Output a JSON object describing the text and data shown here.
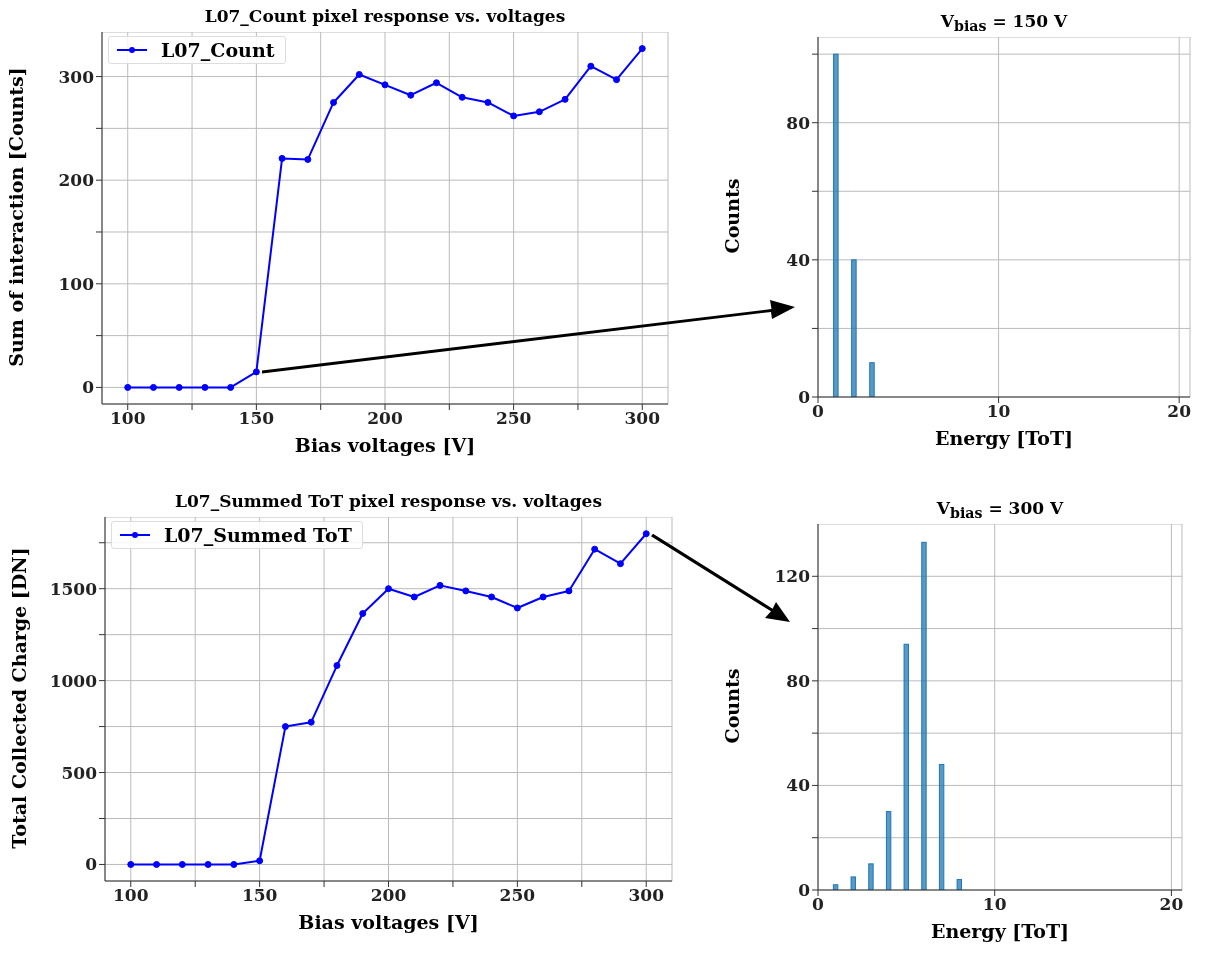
{
  "chart_data": [
    {
      "type": "line",
      "title": "L07_Count pixel response vs. voltages",
      "xlabel": "Bias voltages [V]",
      "ylabel": "Sum of interaction [Counts]",
      "x": [
        100,
        110,
        120,
        130,
        140,
        150,
        160,
        170,
        180,
        190,
        200,
        210,
        220,
        230,
        240,
        250,
        260,
        270,
        280,
        290,
        300
      ],
      "series": [
        {
          "name": "L07_Count",
          "color": "#0000ff",
          "values": [
            0,
            0,
            0,
            0,
            0,
            15,
            221,
            220,
            275,
            302,
            292,
            282,
            294,
            280,
            275,
            262,
            266,
            278,
            310,
            297,
            327
          ]
        }
      ],
      "xlim": [
        90,
        310
      ],
      "xticks": [
        100,
        {
          "value": 125,
          "label": null
        },
        150,
        {
          "value": 175,
          "label": null
        },
        200,
        {
          "value": 225,
          "label": null
        },
        250,
        {
          "value": 275,
          "label": null
        },
        300
      ],
      "ylim": [
        -16,
        343
      ],
      "yticks": [
        0,
        {
          "value": 50,
          "label": null
        },
        100,
        {
          "value": 150,
          "label": null
        },
        200,
        {
          "value": 250,
          "label": null
        },
        300
      ],
      "grid": true,
      "legend": "top left",
      "marker": "circle",
      "line_style": "solid"
    },
    {
      "type": "histogram",
      "title": "V$_{bias}$ = 150 V",
      "xlabel": "Energy [ToT]",
      "ylabel": "Counts",
      "bins": [
        0.5,
        1.5,
        2.5,
        3.5
      ],
      "values": [
        100,
        40,
        10
      ],
      "color": "#1f77b4",
      "xlim": [
        0,
        20.6
      ],
      "xticks": [
        0,
        10,
        20
      ],
      "ylim": [
        0,
        105
      ],
      "yticks": [
        0,
        {
          "value": 20,
          "label": null
        },
        40,
        {
          "value": 60,
          "label": null
        },
        80,
        {
          "value": 100,
          "label": null
        }
      ],
      "grid": true
    },
    {
      "type": "line",
      "title": "L07_Summed ToT pixel response vs. voltages",
      "xlabel": "Bias voltages [V]",
      "ylabel": "Total Collected Charge [DN]",
      "x": [
        100,
        110,
        120,
        130,
        140,
        150,
        160,
        170,
        180,
        190,
        200,
        210,
        220,
        230,
        240,
        250,
        260,
        270,
        280,
        290,
        300
      ],
      "series": [
        {
          "name": "L07_Summed ToT",
          "color": "#0000ff",
          "values": [
            0,
            0,
            0,
            0,
            0,
            20,
            750,
            774,
            1082,
            1365,
            1500,
            1455,
            1518,
            1488,
            1455,
            1395,
            1455,
            1488,
            1715,
            1636,
            1799
          ]
        }
      ],
      "xlim": [
        90,
        310
      ],
      "xticks": [
        100,
        {
          "value": 125,
          "label": null
        },
        150,
        {
          "value": 175,
          "label": null
        },
        200,
        {
          "value": 225,
          "label": null
        },
        250,
        {
          "value": 275,
          "label": null
        },
        300
      ],
      "ylim": [
        -90,
        1890
      ],
      "yticks": [
        0,
        {
          "value": 250,
          "label": null
        },
        500,
        {
          "value": 750,
          "label": null
        },
        1000,
        {
          "value": 1250,
          "label": null
        },
        1500,
        {
          "value": 1750,
          "label": null
        }
      ],
      "grid": true,
      "legend": "top left",
      "marker": "circle",
      "line_style": "solid"
    },
    {
      "type": "histogram",
      "title": "V$_{bias}$ = 300 V",
      "xlabel": "Energy [ToT]",
      "ylabel": "Counts",
      "bins": [
        0.5,
        1.5,
        2.5,
        3.5,
        4.5,
        5.5,
        6.5,
        7.5,
        8.5
      ],
      "values": [
        2,
        5,
        10,
        30,
        94,
        133,
        48,
        4
      ],
      "color": "#1f77b4",
      "xlim": [
        0,
        20.6
      ],
      "xticks": [
        0,
        10,
        20
      ],
      "ylim": [
        0,
        140
      ],
      "yticks": [
        0,
        {
          "value": 20,
          "label": null
        },
        40,
        {
          "value": 60,
          "label": null
        },
        80,
        {
          "value": 100,
          "label": null
        },
        120
      ],
      "grid": true
    }
  ]
}
